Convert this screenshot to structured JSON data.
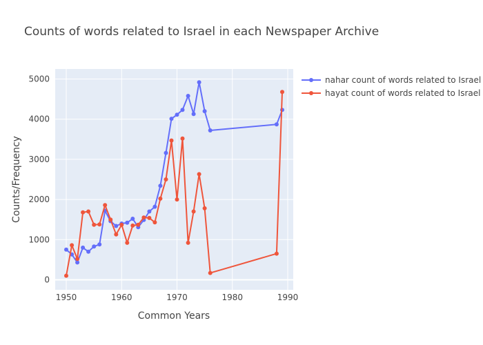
{
  "chart_data": {
    "type": "line",
    "title": "Counts of words related to Israel in each Newspaper Archive",
    "xlabel": "Common Years",
    "ylabel": "Counts/Frequency",
    "xlim": [
      1948,
      1991
    ],
    "ylim": [
      -250,
      5250
    ],
    "xticks": [
      1950,
      1960,
      1970,
      1980,
      1990
    ],
    "yticks": [
      0,
      1000,
      2000,
      3000,
      4000,
      5000
    ],
    "grid": true,
    "legend_position": "top-right",
    "x": [
      1950,
      1951,
      1952,
      1953,
      1954,
      1955,
      1956,
      1957,
      1958,
      1959,
      1960,
      1961,
      1962,
      1963,
      1964,
      1965,
      1966,
      1967,
      1968,
      1969,
      1970,
      1971,
      1972,
      1973,
      1974,
      1975,
      1976,
      1988,
      1989
    ],
    "series": [
      {
        "name": "nahar count of words related to Israel",
        "color": "#636efa",
        "values": [
          750,
          630,
          430,
          800,
          700,
          830,
          880,
          1720,
          1460,
          1340,
          1400,
          1420,
          1520,
          1310,
          1490,
          1700,
          1820,
          2340,
          3160,
          4010,
          4110,
          4230,
          4580,
          4130,
          4920,
          4200,
          3720,
          3870,
          4230
        ]
      },
      {
        "name": "hayat count of words related to Israel",
        "color": "#ef553b",
        "values": [
          100,
          860,
          520,
          1680,
          1700,
          1370,
          1380,
          1860,
          1500,
          1130,
          1370,
          920,
          1350,
          1370,
          1550,
          1540,
          1430,
          2020,
          2500,
          3470,
          2000,
          3520,
          920,
          1700,
          2630,
          1780,
          170,
          650,
          4680
        ]
      }
    ]
  }
}
